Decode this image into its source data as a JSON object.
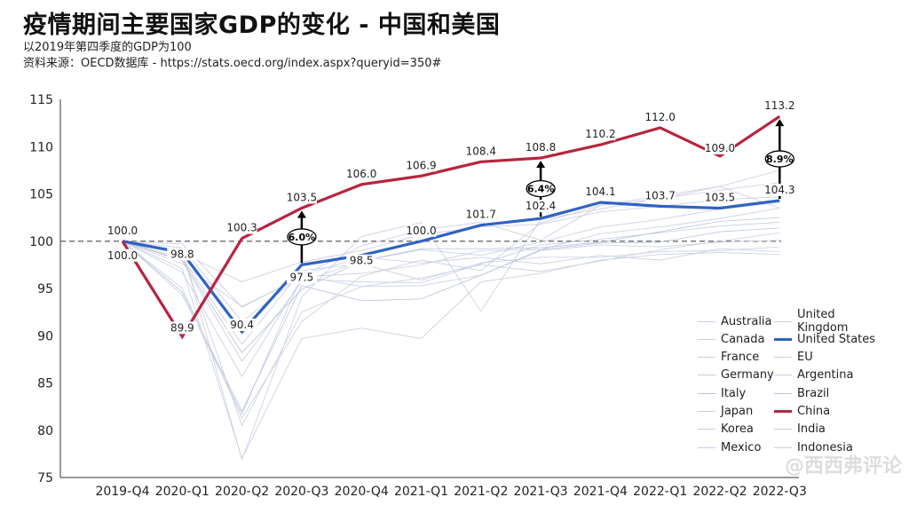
{
  "chart_data": {
    "type": "line",
    "title": "疫情期间主要国家GDP的变化 - 中国和美国",
    "subtitle": "以2019年第四季度的GDP为100",
    "source": "资料来源：OECD数据库 - https://stats.oecd.org/index.aspx?queryid=350#",
    "categories": [
      "2019-Q4",
      "2020-Q1",
      "2020-Q2",
      "2020-Q3",
      "2020-Q4",
      "2021-Q1",
      "2021-Q2",
      "2021-Q3",
      "2021-Q4",
      "2022-Q1",
      "2022-Q2",
      "2022-Q3"
    ],
    "ylim": [
      75,
      115
    ],
    "yticks": [
      75,
      80,
      85,
      90,
      95,
      100,
      105,
      110,
      115
    ],
    "reference_line": 100,
    "legend_placement": "bottom-right",
    "series": [
      {
        "name": "Australia",
        "color": "#c8cde0",
        "values": [
          100,
          99.7,
          93.0,
          96.3,
          99.5,
          101.2,
          102.0,
          100.1,
          103.8,
          104.5,
          105.4,
          106.2
        ]
      },
      {
        "name": "Canada",
        "color": "#c8cde0",
        "values": [
          100,
          97.9,
          87.3,
          95.7,
          97.9,
          99.1,
          98.5,
          99.9,
          101.5,
          102.3,
          103.4,
          104.1
        ]
      },
      {
        "name": "France",
        "color": "#c8cde0",
        "values": [
          100,
          94.3,
          81.7,
          96.3,
          95.2,
          95.3,
          96.4,
          99.0,
          99.6,
          99.4,
          99.9,
          100.1
        ]
      },
      {
        "name": "Germany",
        "color": "#c8cde0",
        "values": [
          100,
          98.2,
          89.1,
          96.9,
          97.6,
          95.9,
          97.7,
          98.3,
          98.3,
          98.9,
          99.0,
          99.4
        ]
      },
      {
        "name": "Italy",
        "color": "#b8c2dc",
        "values": [
          100,
          94.6,
          82.0,
          95.3,
          93.7,
          93.9,
          96.4,
          99.1,
          99.8,
          99.9,
          101.0,
          101.4
        ]
      },
      {
        "name": "Japan",
        "color": "#c8cde0",
        "values": [
          100,
          99.3,
          91.5,
          96.4,
          98.3,
          97.7,
          98.3,
          97.6,
          98.5,
          98.0,
          99.2,
          98.9
        ]
      },
      {
        "name": "Korea",
        "color": "#c8cde0",
        "values": [
          100,
          98.7,
          95.7,
          97.8,
          99.0,
          100.7,
          101.5,
          101.8,
          103.1,
          103.7,
          104.4,
          104.7
        ]
      },
      {
        "name": "Mexico",
        "color": "#c8cde0",
        "values": [
          100,
          98.7,
          80.5,
          92.5,
          95.2,
          96.1,
          97.5,
          96.8,
          97.9,
          99.1,
          100.0,
          100.9
        ]
      },
      {
        "name": "United Kingdom",
        "color": "#c8cde0",
        "values": [
          100,
          97.1,
          77.0,
          89.7,
          90.8,
          89.7,
          95.7,
          96.6,
          98.0,
          98.6,
          98.8,
          98.6
        ]
      },
      {
        "name": "United States",
        "color": "#2f62c4",
        "values": [
          100,
          98.8,
          90.4,
          97.5,
          98.5,
          100.0,
          101.7,
          102.4,
          104.1,
          103.7,
          103.5,
          104.3
        ]
      },
      {
        "name": "EU",
        "color": "#c8cde0",
        "values": [
          100,
          96.7,
          85.7,
          96.0,
          95.7,
          95.6,
          97.6,
          99.6,
          100.2,
          100.9,
          101.6,
          102.0
        ]
      },
      {
        "name": "Argentina",
        "color": "#c8cde0",
        "values": [
          100,
          95.0,
          81.3,
          91.5,
          96.3,
          98.0,
          96.9,
          101.9,
          103.8,
          104.8,
          105.8,
          103.5
        ]
      },
      {
        "name": "Brazil",
        "color": "#b8c2dc",
        "values": [
          100,
          98.0,
          88.2,
          94.9,
          97.9,
          99.2,
          99.2,
          99.3,
          99.9,
          101.0,
          102.1,
          102.5
        ]
      },
      {
        "name": "China",
        "color": "#b8243e",
        "values": [
          100,
          89.9,
          100.3,
          103.5,
          106.0,
          106.9,
          108.4,
          108.8,
          110.2,
          112.0,
          109.0,
          113.2
        ]
      },
      {
        "name": "India",
        "color": "#c8cde0",
        "values": [
          100,
          99.0,
          76.9,
          94.1,
          100.5,
          102.0,
          92.6,
          102.3,
          103.4,
          104.5,
          105.8,
          107.5
        ]
      },
      {
        "name": "Indonesia",
        "color": "#c8cde0",
        "values": [
          100,
          97.6,
          93.1,
          96.2,
          96.6,
          97.5,
          99.0,
          99.1,
          100.8,
          101.5,
          102.4,
          103.5
        ]
      }
    ],
    "labeled_series": [
      "China",
      "United States"
    ],
    "gap_annotations": [
      {
        "category": "2020-Q3",
        "text": "6.0%"
      },
      {
        "category": "2021-Q3",
        "text": "6.4%"
      },
      {
        "category": "2022-Q3",
        "text": "8.9%"
      }
    ]
  },
  "watermark": "@西西弗评论"
}
